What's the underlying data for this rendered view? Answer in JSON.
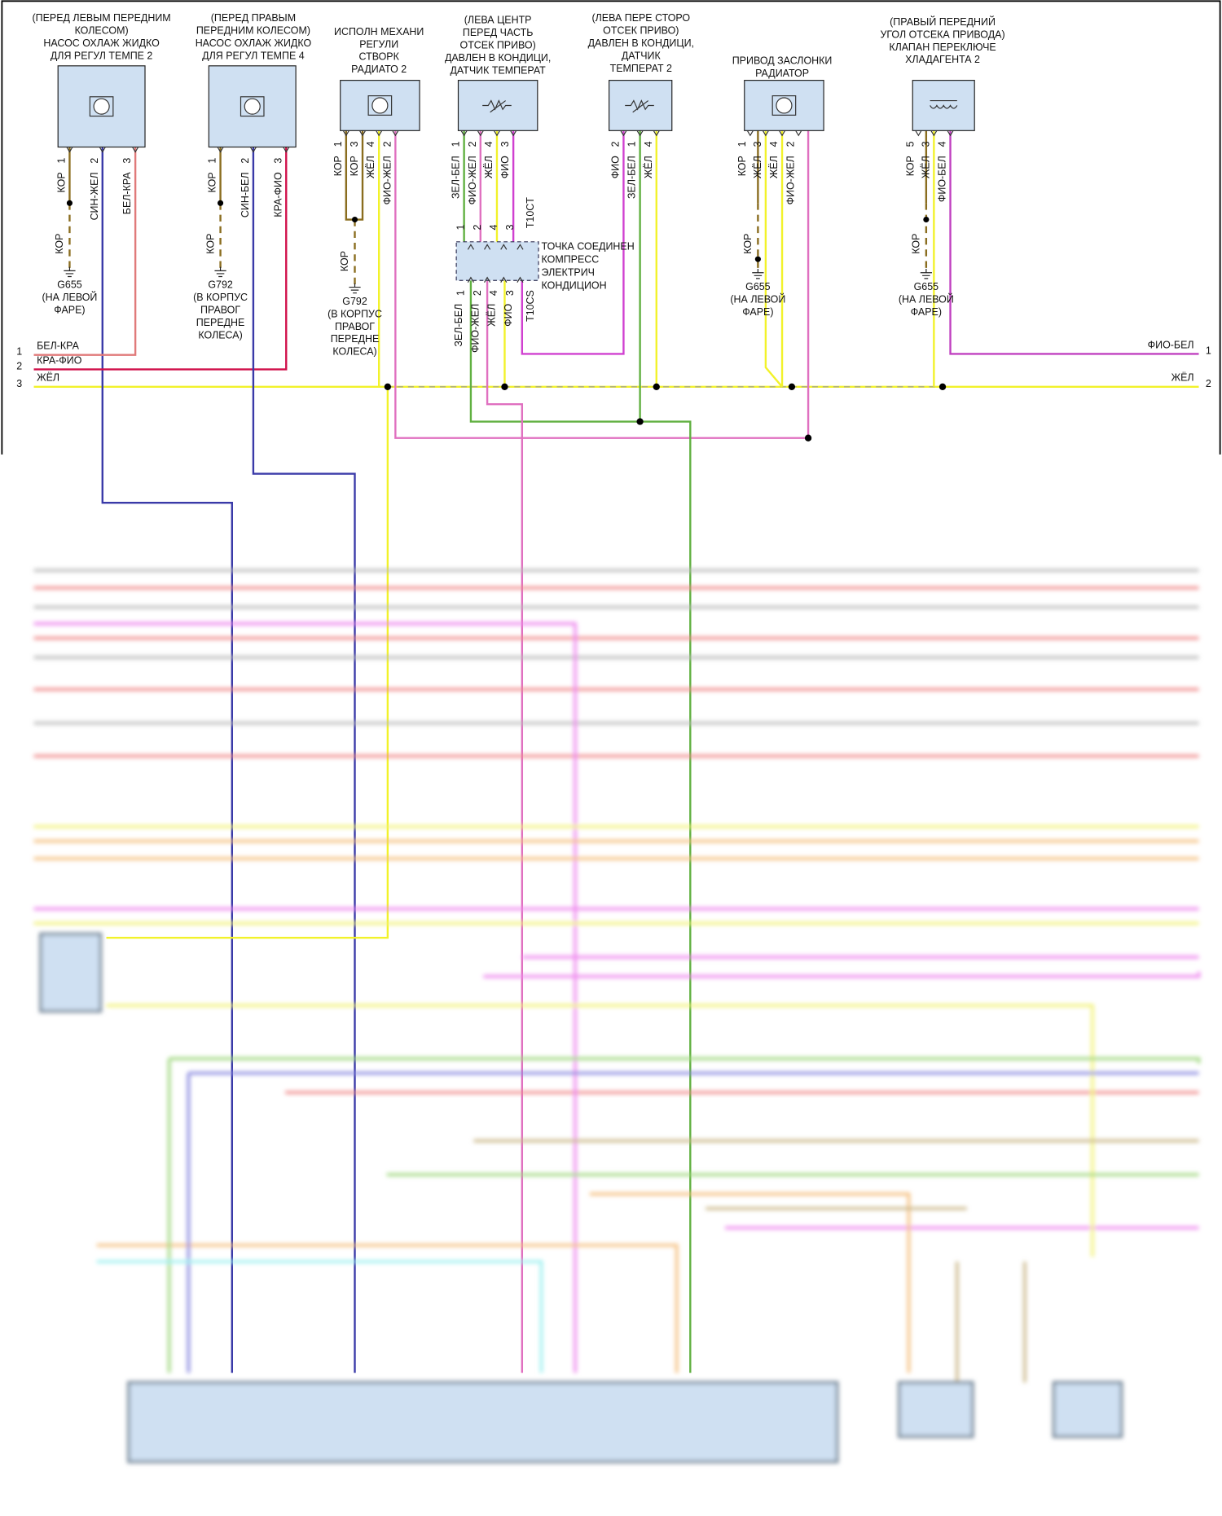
{
  "components": [
    {
      "label": [
        "(ПЕРЕД ЛЕВЫМ ПЕРЕДНИМ",
        "КОЛЕСОМ)",
        "НАСОС ОХЛАЖ ЖИДКО",
        "ДЛЯ РЕГУЛ ТЕМПЕ 2"
      ],
      "pins": [
        {
          "pin": "1",
          "wire": "КОР"
        },
        {
          "pin": "2",
          "wire": "СИН-ЖЕЛ"
        },
        {
          "pin": "3",
          "wire": "БЕЛ-КРА"
        }
      ]
    },
    {
      "label": [
        "(ПЕРЕД ПРАВЫМ",
        "ПЕРЕДНИМ КОЛЕСОМ)",
        "НАСОС ОХЛАЖ ЖИДКО",
        "ДЛЯ РЕГУЛ ТЕМПЕ 4"
      ],
      "pins": [
        {
          "pin": "1",
          "wire": "КОР"
        },
        {
          "pin": "2",
          "wire": "СИН-БЕЛ"
        },
        {
          "pin": "3",
          "wire": "КРА-ФИО"
        }
      ]
    },
    {
      "label": [
        "ИСПОЛН МЕХАНИ",
        "РЕГУЛИ",
        "СТВОРК",
        "РАДИАТО 2"
      ],
      "pins": [
        {
          "pin": "1",
          "wire": "КОР"
        },
        {
          "pin": "3",
          "wire": "КОР"
        },
        {
          "pin": "4",
          "wire": "ЖЁЛ"
        },
        {
          "pin": "2",
          "wire": "ФИО-ЖЕЛ"
        }
      ]
    },
    {
      "label": [
        "(ЛЕВА ЦЕНТР",
        "ПЕРЕД ЧАСТЬ",
        "ОТСЕК ПРИВО)",
        "ДАВЛЕН В КОНДИЦИ,",
        "ДАТЧИК ТЕМПЕРАТ"
      ],
      "pins": [
        {
          "pin": "1",
          "wire": "ЗЕЛ-БЕЛ"
        },
        {
          "pin": "2",
          "wire": "ФИО-ЖЕЛ"
        },
        {
          "pin": "4",
          "wire": "ЖЁЛ"
        },
        {
          "pin": "3",
          "wire": "ФИО"
        }
      ]
    },
    {
      "label": [
        "(ЛЕВА ПЕРЕ СТОРО",
        "ОТСЕК ПРИВО)",
        "ДАВЛЕН В КОНДИЦИ,",
        "ДАТЧИК",
        "ТЕМПЕРАТ 2"
      ],
      "pins": [
        {
          "pin": "2",
          "wire": "ФИО"
        },
        {
          "pin": "1",
          "wire": "ЗЕЛ-БЕЛ"
        },
        {
          "pin": "4",
          "wire": "ЖЁЛ"
        }
      ]
    },
    {
      "label": [
        "ПРИВОД ЗАСЛОНКИ",
        "РАДИАТОР"
      ],
      "pins": [
        {
          "pin": "1",
          "wire": "КОР"
        },
        {
          "pin": "3",
          "wire": "ЖЁЛ"
        },
        {
          "pin": "4",
          "wire": "ЖЁЛ"
        },
        {
          "pin": "2",
          "wire": "ФИО-ЖЕЛ"
        }
      ]
    },
    {
      "label": [
        "(ПРАВЫЙ ПЕРЕДНИЙ",
        "УГОЛ ОТСЕКА ПРИВОДА)",
        "КЛАПАН ПЕРЕКЛЮЧЕ",
        "ХЛАДАГЕНТА 2"
      ],
      "pins": [
        {
          "pin": "5",
          "wire": "КОР"
        },
        {
          "pin": "3",
          "wire": "ЖЁЛ"
        },
        {
          "pin": "4",
          "wire": "ФИО-БЕЛ"
        }
      ]
    }
  ],
  "grounds": [
    {
      "wire": "КОР",
      "name": "G655",
      "location": [
        "(НА ЛЕВОЙ",
        "ФАРЕ)"
      ]
    },
    {
      "wire": "КОР",
      "name": "G792",
      "location": [
        "(В КОРПУС",
        "ПРАВОГ",
        "ПЕРЕДНЕ",
        "КОЛЕСА)"
      ]
    },
    {
      "wire": "КОР",
      "name": "G792",
      "location": [
        "(В КОРПУС",
        "ПРАВОГ",
        "ПЕРЕДНЕ",
        "КОЛЕСА)"
      ]
    },
    {
      "wire": "КОР",
      "name": "G655",
      "location": [
        "(НА ЛЕВОЙ",
        "ФАРЕ)"
      ]
    },
    {
      "wire": "КОР",
      "name": "G655",
      "location": [
        "(НА ЛЕВОЙ",
        "ФАРЕ)"
      ]
    }
  ],
  "connector": {
    "top": "T10CT",
    "bottom": "T10CS",
    "label": [
      "ТОЧКА СОЕДИНЕН",
      "КОМПРЕСС",
      "ЭЛЕКТРИЧ",
      "КОНДИЦИОН"
    ],
    "top_pins": [
      "1",
      "2",
      "4",
      "3"
    ],
    "bottom_pins": [
      {
        "pin": "1",
        "wire": "ЗЕЛ-БЕЛ"
      },
      {
        "pin": "2",
        "wire": "ФИО-ЖЕЛ"
      },
      {
        "pin": "4",
        "wire": "ЖЁЛ"
      },
      {
        "pin": "3",
        "wire": "ФИО"
      }
    ]
  },
  "rails_left": [
    {
      "number": "1",
      "wire": "БЕЛ-КРА"
    },
    {
      "number": "2",
      "wire": "КРА-ФИО"
    },
    {
      "number": "3",
      "wire": "ЖЁЛ"
    }
  ],
  "rails_right": [
    {
      "number": "1",
      "wire": "ФИО-БЕЛ"
    },
    {
      "number": "2",
      "wire": "ЖЁЛ"
    }
  ]
}
